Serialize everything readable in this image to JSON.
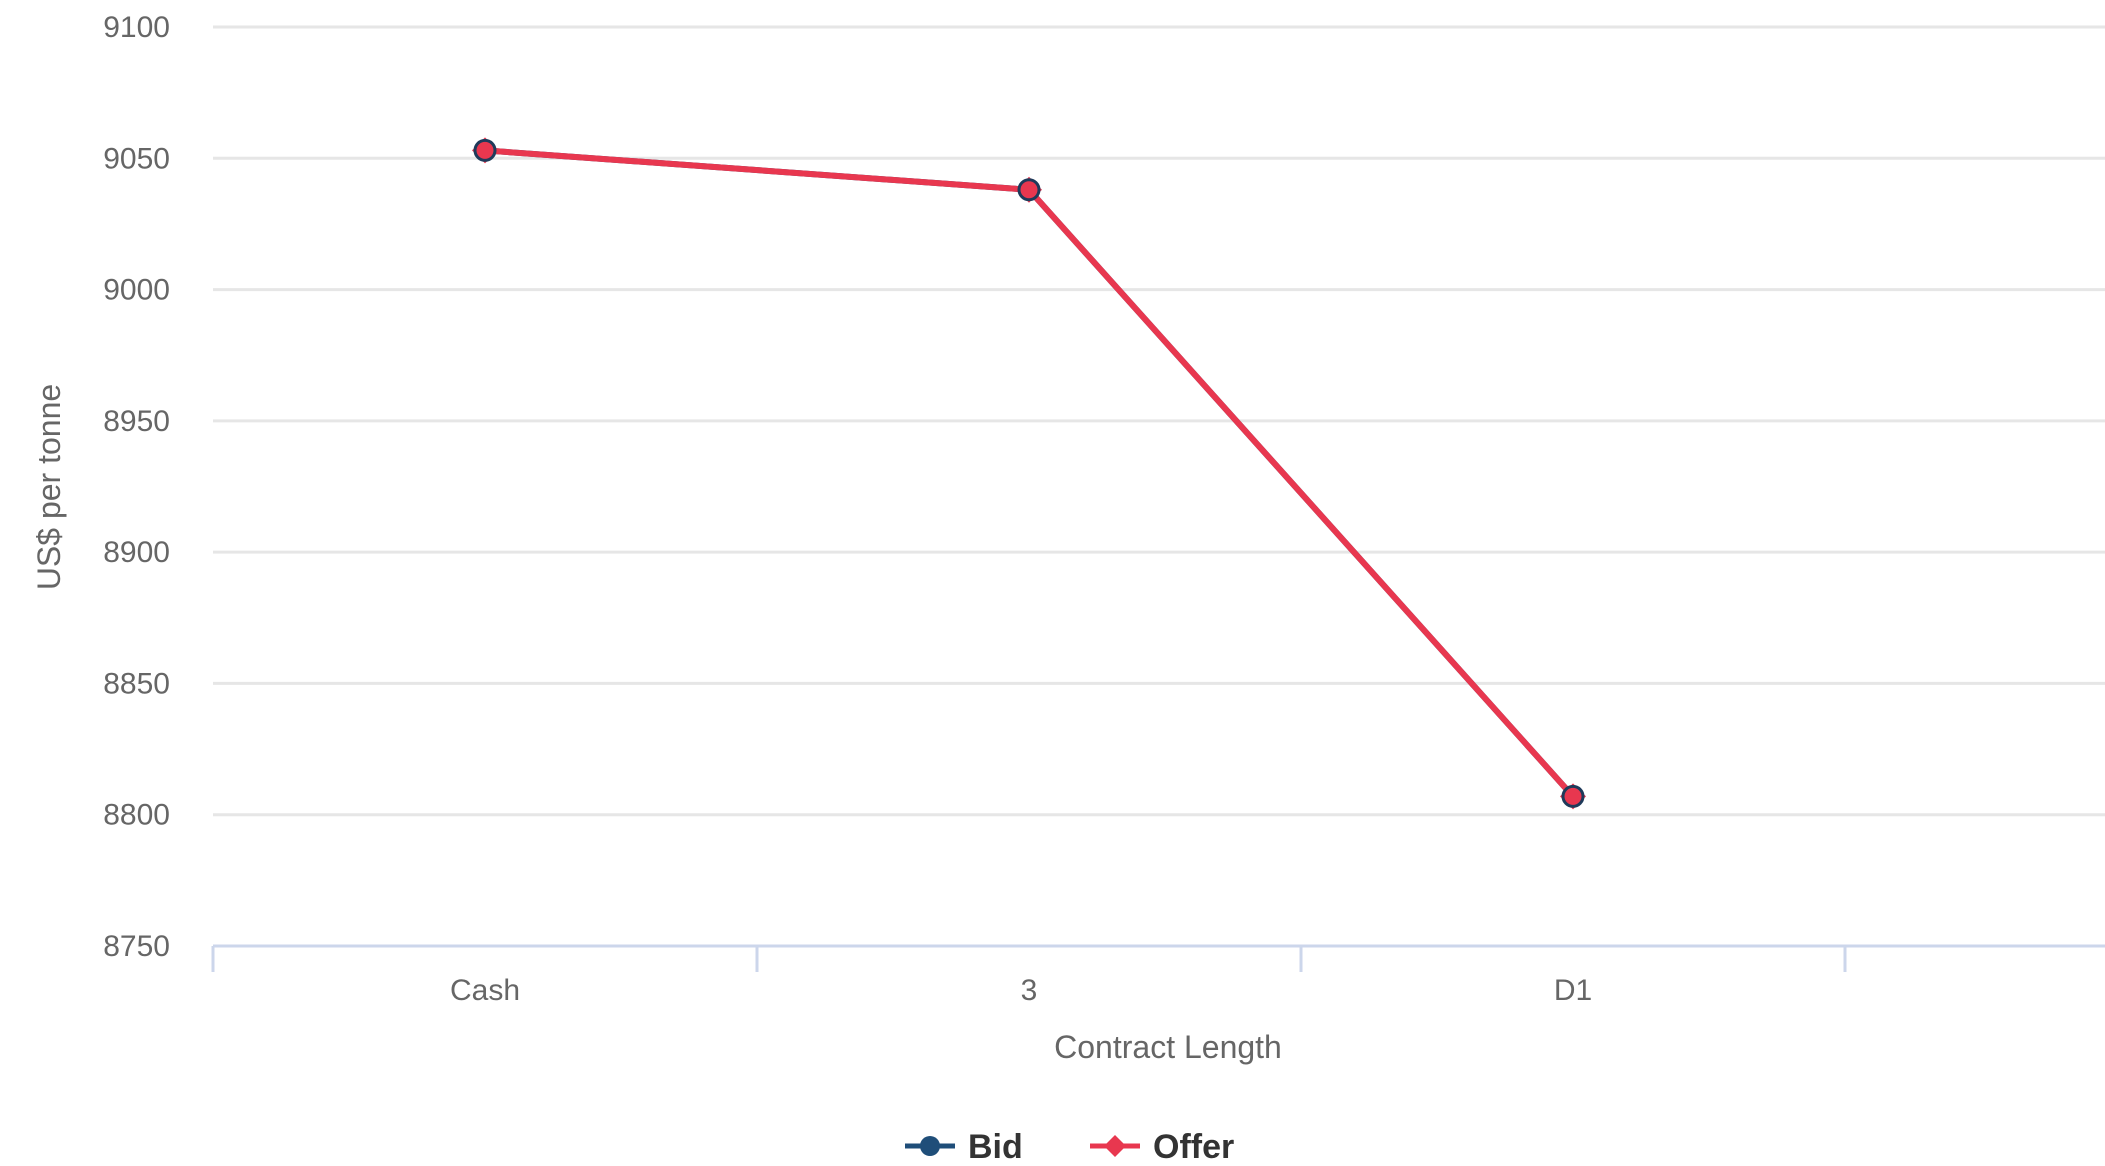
{
  "chart_data": {
    "type": "line",
    "categories": [
      "Cash",
      "3",
      "D1"
    ],
    "series": [
      {
        "name": "Bid",
        "values": [
          9053,
          9038,
          8807
        ],
        "color": "#1f4e79",
        "marker": "circle"
      },
      {
        "name": "Offer",
        "values": [
          9053,
          9038,
          8807
        ],
        "color": "#e8374f",
        "marker": "diamond"
      }
    ],
    "xlabel": "Contract Length",
    "ylabel": "US$ per tonne",
    "ylim": [
      8750,
      9100
    ],
    "yticks": [
      8750,
      8800,
      8850,
      8900,
      8950,
      9000,
      9050,
      9100
    ],
    "grid": true,
    "legend_position": "bottom-center"
  }
}
